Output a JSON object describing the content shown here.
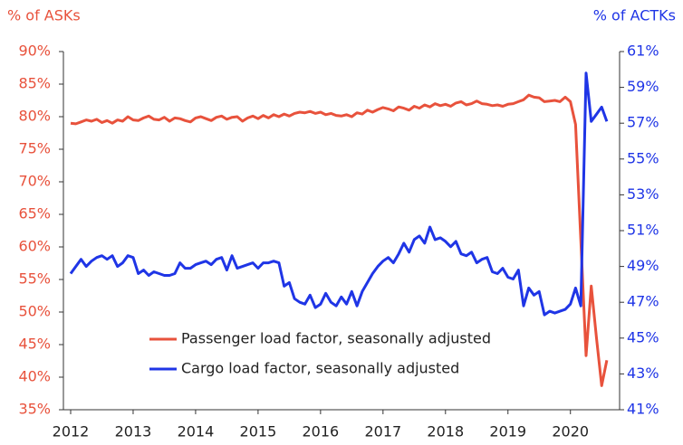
{
  "chart_data": {
    "type": "line",
    "y_label": "% of ASKs",
    "y2_label": "% of ACTKs",
    "xlim": [
      2012,
      2020.7
    ],
    "xticks": [
      2012,
      2013,
      2014,
      2015,
      2016,
      2017,
      2018,
      2019,
      2020
    ],
    "ylim": [
      35,
      90
    ],
    "yticks": [
      {
        "value": 35,
        "label": "35%"
      },
      {
        "value": 40,
        "label": "40%"
      },
      {
        "value": 45,
        "label": "45%"
      },
      {
        "value": 50,
        "label": "50%"
      },
      {
        "value": 55,
        "label": "55%"
      },
      {
        "value": 60,
        "label": "60%"
      },
      {
        "value": 65,
        "label": "65%"
      },
      {
        "value": 70,
        "label": "70%"
      },
      {
        "value": 75,
        "label": "75%"
      },
      {
        "value": 80,
        "label": "80%"
      },
      {
        "value": 85,
        "label": "85%"
      },
      {
        "value": 90,
        "label": "90%"
      }
    ],
    "y2lim": [
      41,
      61
    ],
    "y2ticks": [
      {
        "value": 41,
        "label": "41%"
      },
      {
        "value": 43,
        "label": "43%"
      },
      {
        "value": 45,
        "label": "45%"
      },
      {
        "value": 47,
        "label": "47%"
      },
      {
        "value": 49,
        "label": "49%"
      },
      {
        "value": 51,
        "label": "51%"
      },
      {
        "value": 53,
        "label": "53%"
      },
      {
        "value": 55,
        "label": "55%"
      },
      {
        "value": 57,
        "label": "57%"
      },
      {
        "value": 59,
        "label": "59%"
      },
      {
        "value": 61,
        "label": "61%"
      }
    ],
    "grid": false,
    "legend": "lower left",
    "x": [
      2012.0,
      2012.083,
      2012.167,
      2012.25,
      2012.333,
      2012.417,
      2012.5,
      2012.583,
      2012.667,
      2012.75,
      2012.833,
      2012.917,
      2013.0,
      2013.083,
      2013.167,
      2013.25,
      2013.333,
      2013.417,
      2013.5,
      2013.583,
      2013.667,
      2013.75,
      2013.833,
      2013.917,
      2014.0,
      2014.083,
      2014.167,
      2014.25,
      2014.333,
      2014.417,
      2014.5,
      2014.583,
      2014.667,
      2014.75,
      2014.833,
      2014.917,
      2015.0,
      2015.083,
      2015.167,
      2015.25,
      2015.333,
      2015.417,
      2015.5,
      2015.583,
      2015.667,
      2015.75,
      2015.833,
      2015.917,
      2016.0,
      2016.083,
      2016.167,
      2016.25,
      2016.333,
      2016.417,
      2016.5,
      2016.583,
      2016.667,
      2016.75,
      2016.833,
      2016.917,
      2017.0,
      2017.083,
      2017.167,
      2017.25,
      2017.333,
      2017.417,
      2017.5,
      2017.583,
      2017.667,
      2017.75,
      2017.833,
      2017.917,
      2018.0,
      2018.083,
      2018.167,
      2018.25,
      2018.333,
      2018.417,
      2018.5,
      2018.583,
      2018.667,
      2018.75,
      2018.833,
      2018.917,
      2019.0,
      2019.083,
      2019.167,
      2019.25,
      2019.333,
      2019.417,
      2019.5,
      2019.583,
      2019.667,
      2019.75,
      2019.833,
      2019.917,
      2020.0,
      2020.083,
      2020.167,
      2020.25,
      2020.333,
      2020.417,
      2020.5,
      2020.583
    ],
    "series": [
      {
        "name": "Passenger load factor, seasonally adjusted",
        "color": "#e8523c",
        "axis": "y",
        "values": [
          79.0,
          78.9,
          79.2,
          79.5,
          79.3,
          79.6,
          79.1,
          79.4,
          79.0,
          79.5,
          79.3,
          80.0,
          79.5,
          79.4,
          79.8,
          80.1,
          79.6,
          79.5,
          79.9,
          79.3,
          79.8,
          79.7,
          79.4,
          79.2,
          79.8,
          80.0,
          79.7,
          79.4,
          79.9,
          80.1,
          79.6,
          79.9,
          80.0,
          79.3,
          79.8,
          80.1,
          79.7,
          80.2,
          79.8,
          80.3,
          80.0,
          80.4,
          80.1,
          80.5,
          80.7,
          80.6,
          80.8,
          80.5,
          80.7,
          80.3,
          80.5,
          80.2,
          80.1,
          80.3,
          80.0,
          80.6,
          80.4,
          81.0,
          80.7,
          81.1,
          81.4,
          81.2,
          80.9,
          81.5,
          81.3,
          81.0,
          81.6,
          81.3,
          81.8,
          81.5,
          82.0,
          81.7,
          81.9,
          81.6,
          82.1,
          82.3,
          81.8,
          82.0,
          82.4,
          82.0,
          81.9,
          81.7,
          81.8,
          81.6,
          81.9,
          82.0,
          82.3,
          82.6,
          83.3,
          83.0,
          82.9,
          82.3,
          82.4,
          82.5,
          82.3,
          83.0,
          82.3,
          78.8,
          61.0,
          43.3,
          54.0,
          46.0,
          38.7,
          42.6
        ]
      },
      {
        "name": "Cargo load factor, seasonally adjusted",
        "color": "#1f35e6",
        "axis": "y2",
        "values": [
          48.6,
          49.0,
          49.4,
          49.0,
          49.3,
          49.5,
          49.6,
          49.4,
          49.6,
          49.0,
          49.2,
          49.6,
          49.5,
          48.6,
          48.8,
          48.5,
          48.7,
          48.6,
          48.5,
          48.5,
          48.6,
          49.2,
          48.9,
          48.9,
          49.1,
          49.2,
          49.3,
          49.1,
          49.4,
          49.5,
          48.8,
          49.6,
          48.9,
          49.0,
          49.1,
          49.2,
          48.9,
          49.2,
          49.2,
          49.3,
          49.2,
          47.9,
          48.1,
          47.2,
          47.0,
          46.9,
          47.4,
          46.7,
          46.9,
          47.5,
          47.0,
          46.8,
          47.3,
          46.9,
          47.6,
          46.8,
          47.6,
          48.1,
          48.6,
          49.0,
          49.3,
          49.5,
          49.2,
          49.7,
          50.3,
          49.8,
          50.5,
          50.7,
          50.3,
          51.2,
          50.5,
          50.6,
          50.4,
          50.1,
          50.4,
          49.7,
          49.6,
          49.8,
          49.2,
          49.4,
          49.5,
          48.7,
          48.6,
          48.9,
          48.4,
          48.3,
          48.8,
          46.8,
          47.8,
          47.4,
          47.6,
          46.3,
          46.5,
          46.4,
          46.5,
          46.6,
          46.9,
          47.8,
          46.8,
          59.8,
          57.1,
          57.5,
          57.9,
          57.1
        ]
      }
    ]
  }
}
